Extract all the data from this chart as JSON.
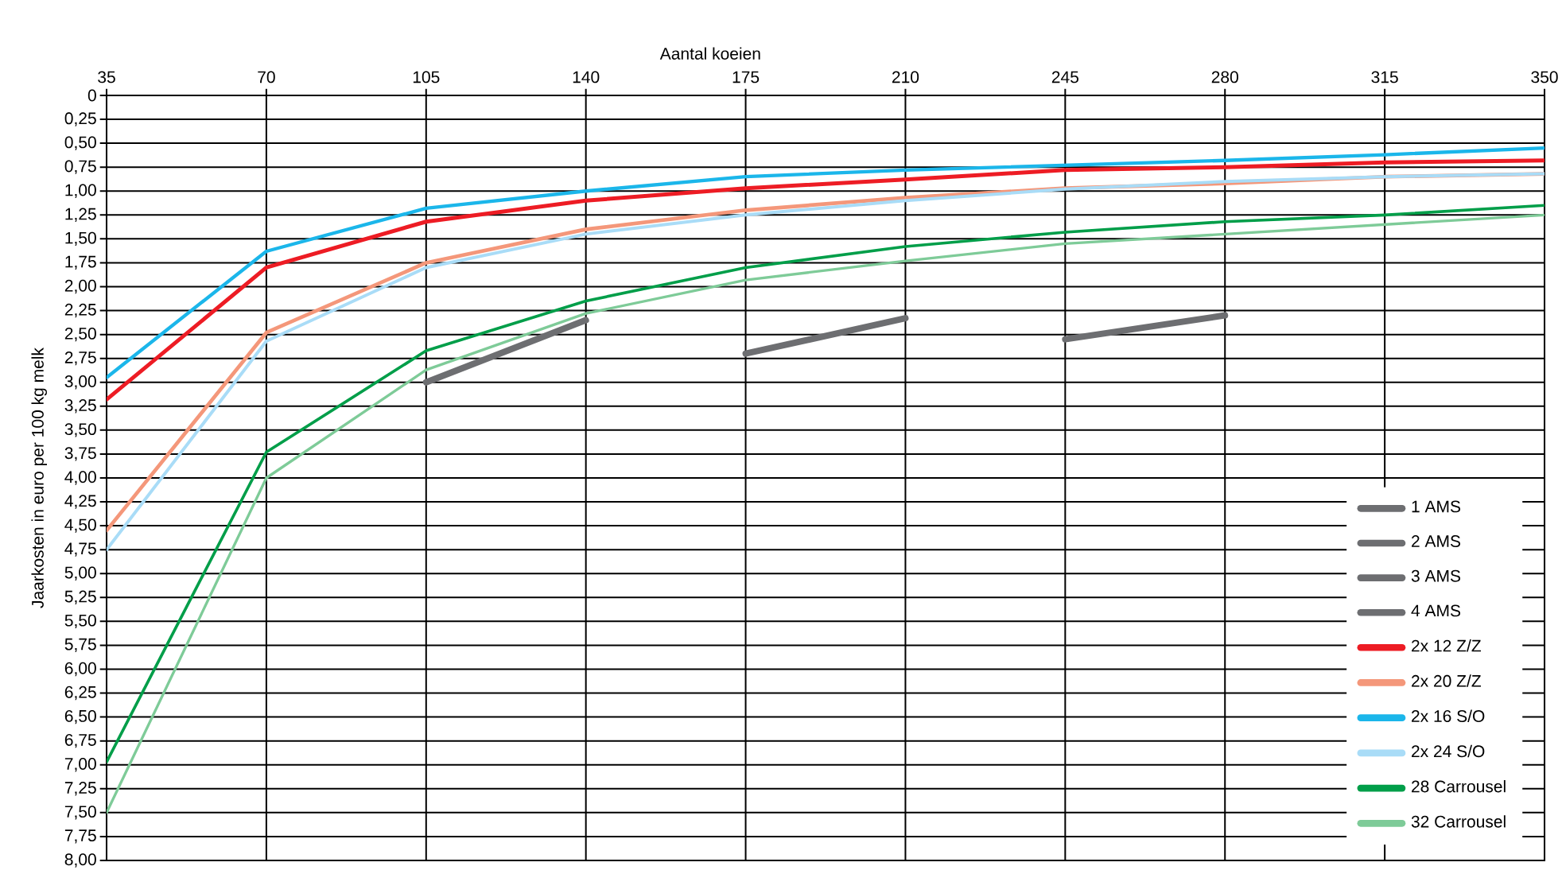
{
  "chart_data": {
    "type": "line",
    "xlabel": "Aantal koeien",
    "ylabel": "Jaarkosten in euro per 100 kg melk",
    "xlim": [
      35,
      350
    ],
    "xticks": [
      35,
      70,
      105,
      140,
      175,
      210,
      245,
      280,
      315,
      350
    ],
    "ylim": [
      8,
      0
    ],
    "yticks": [
      0,
      {
        "value": 0.25,
        "label": "0,25"
      },
      {
        "value": 0.5,
        "label": "0,50"
      },
      {
        "value": 0.75,
        "label": "0,75"
      },
      {
        "value": 1,
        "label": "1,00"
      },
      {
        "value": 1.25,
        "label": "1,25"
      },
      {
        "value": 1.5,
        "label": "1,50"
      },
      {
        "value": 1.75,
        "label": "1,75"
      },
      {
        "value": 2,
        "label": "2,00"
      },
      {
        "value": 2.25,
        "label": "2,25"
      },
      {
        "value": 2.5,
        "label": "2,50"
      },
      {
        "value": 2.75,
        "label": "2,75"
      },
      {
        "value": 3,
        "label": "3,00"
      },
      {
        "value": 3.25,
        "label": "3,25"
      },
      {
        "value": 3.5,
        "label": "3,50"
      },
      {
        "value": 3.75,
        "label": "3,75"
      },
      {
        "value": 4,
        "label": "4,00"
      },
      {
        "value": 4.25,
        "label": "4,25"
      },
      {
        "value": 4.5,
        "label": "4,50"
      },
      {
        "value": 4.75,
        "label": "4,75"
      },
      {
        "value": 5,
        "label": "5,00"
      },
      {
        "value": 5.25,
        "label": "5,25"
      },
      {
        "value": 5.5,
        "label": "5,50"
      },
      {
        "value": 5.75,
        "label": "5,75"
      },
      {
        "value": 6,
        "label": "6,00"
      },
      {
        "value": 6.25,
        "label": "6,25"
      },
      {
        "value": 6.5,
        "label": "6,50"
      },
      {
        "value": 6.75,
        "label": "6,75"
      },
      {
        "value": 7,
        "label": "7,00"
      },
      {
        "value": 7.25,
        "label": "7,25"
      },
      {
        "value": 7.5,
        "label": "7,50"
      },
      {
        "value": 7.75,
        "label": "7,75"
      },
      {
        "value": 8,
        "label": "8,00"
      }
    ],
    "grid": true,
    "legend": "bottom right",
    "series": [
      {
        "name": "1 AMS",
        "color": "#6d6e71",
        "x": [
          105,
          140
        ],
        "values": [
          3.0,
          2.35
        ]
      },
      {
        "name": "2 AMS",
        "color": "#6d6e71",
        "x": [
          175,
          210
        ],
        "values": [
          2.7,
          2.33
        ]
      },
      {
        "name": "3 AMS",
        "color": "#6d6e71",
        "x": [
          245,
          280
        ],
        "values": [
          2.55,
          2.3
        ]
      },
      {
        "name": "4 AMS",
        "color": "#6d6e71"
      },
      {
        "name": "2x 12 Z/Z",
        "color": "#ed1c24",
        "x": [
          35,
          70,
          105,
          140,
          175,
          210,
          245,
          280,
          315,
          350
        ],
        "values": [
          3.18,
          1.8,
          1.32,
          1.1,
          0.97,
          0.88,
          0.78,
          0.75,
          0.7,
          0.68
        ]
      },
      {
        "name": "2x 20 Z/Z",
        "color": "#f4977a",
        "x": [
          35,
          70,
          105,
          140,
          175,
          210,
          245,
          280,
          315,
          350
        ],
        "values": [
          4.55,
          2.48,
          1.75,
          1.4,
          1.2,
          1.07,
          0.97,
          0.92,
          0.85,
          0.82
        ]
      },
      {
        "name": "2x 16 S/O",
        "color": "#1bb6ea",
        "x": [
          35,
          70,
          105,
          140,
          175,
          210,
          245,
          280,
          315,
          350
        ],
        "values": [
          2.95,
          1.63,
          1.18,
          1.0,
          0.85,
          0.78,
          0.73,
          0.68,
          0.62,
          0.55
        ]
      },
      {
        "name": "2x 24 S/O",
        "color": "#a9dcf7",
        "x": [
          35,
          70,
          105,
          140,
          175,
          210,
          245,
          280,
          315,
          350
        ],
        "values": [
          4.75,
          2.57,
          1.8,
          1.45,
          1.25,
          1.1,
          0.98,
          0.9,
          0.85,
          0.82
        ]
      },
      {
        "name": "28 Carrousel",
        "color": "#009e49",
        "x": [
          35,
          70,
          105,
          140,
          175,
          210,
          245,
          280,
          315,
          350
        ],
        "values": [
          6.97,
          3.73,
          2.67,
          2.15,
          1.8,
          1.58,
          1.43,
          1.32,
          1.25,
          1.15
        ]
      },
      {
        "name": "32 Carrousel",
        "color": "#7ecb98",
        "x": [
          35,
          70,
          105,
          140,
          175,
          210,
          245,
          280,
          315,
          350
        ],
        "values": [
          7.5,
          4.0,
          2.87,
          2.28,
          1.93,
          1.73,
          1.55,
          1.45,
          1.35,
          1.25
        ]
      }
    ]
  }
}
